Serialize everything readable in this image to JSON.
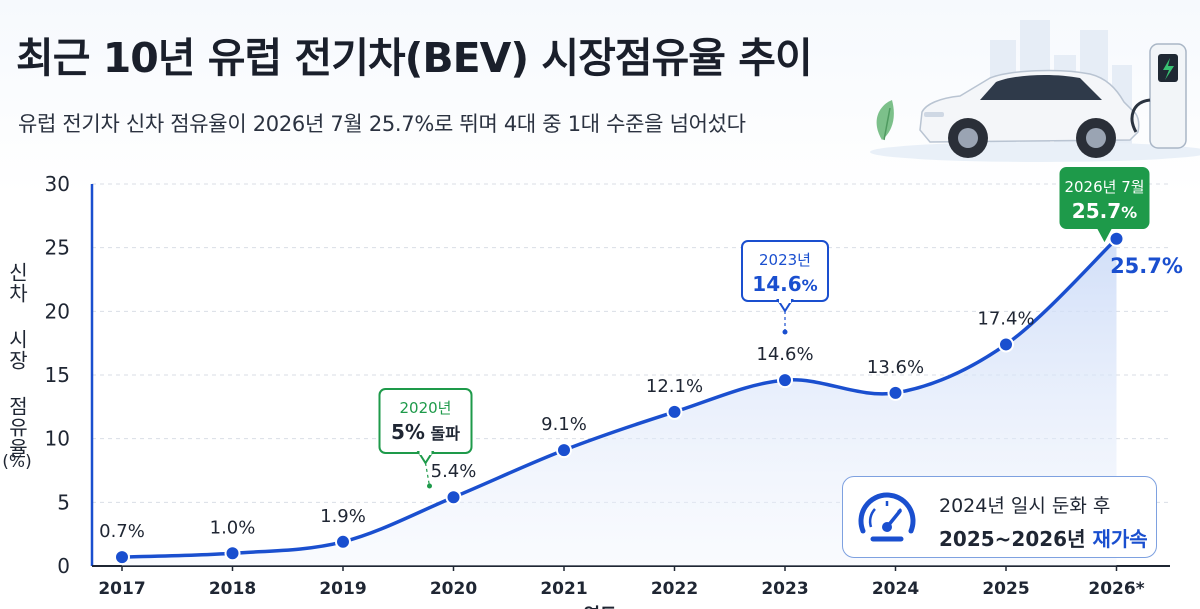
{
  "header": {
    "title": "최근 10년 유럽 전기차(BEV) 시장점유율 추이",
    "subtitle": "유럽 전기차 신차 점유율이 2026년 7월 25.7%로 뛰며 4대 중 1대 수준을 넘어섰다"
  },
  "hero": {
    "car_icon": "car-icon",
    "charger_icon": "ev-charger-icon"
  },
  "chart_data": {
    "type": "line",
    "title": "최근 10년 유럽 전기차(BEV) 시장점유율 추이",
    "ylabel": "신차 시장 점유율",
    "yunit": "(%)",
    "xlabel": "연도",
    "ylim": [
      0,
      30
    ],
    "yticks": [
      0,
      5,
      10,
      15,
      20,
      25,
      30
    ],
    "grid": true,
    "x": [
      "2017",
      "2018",
      "2019",
      "2020",
      "2021",
      "2022",
      "2023",
      "2024",
      "2025",
      "2026*"
    ],
    "series": [
      {
        "values": [
          0.7,
          1.0,
          1.9,
          5.4,
          9.1,
          12.1,
          14.6,
          13.6,
          17.4,
          25.7
        ]
      }
    ],
    "data_labels": [
      "0.7%",
      "1.0%",
      "1.9%",
      "5.4%",
      "9.1%",
      "12.1%",
      "14.6%",
      "13.6%",
      "17.4%",
      "25.7%"
    ],
    "colors": {
      "line": "#1a4fcf",
      "area": "#dbe6fb",
      "green": "#1e9a4a",
      "axis": "#1a4fcf"
    },
    "annotations": [
      {
        "index": 3,
        "line1": "2020년",
        "line2_bold": "5%",
        "line2_rest": " 돌파",
        "style": "green-outline"
      },
      {
        "index": 6,
        "line1": "2023년",
        "line2_bold": "14.6",
        "line2_rest": "%",
        "style": "blue-outline"
      },
      {
        "index": 9,
        "line1": "2026년 7월",
        "line2_bold": "25.7",
        "line2_rest": "%",
        "style": "green-filled"
      }
    ]
  },
  "note": {
    "icon": "speedometer-icon",
    "line1": "2024년 일시 둔화 후",
    "line2": "2025~2026년",
    "line2_highlight": "재가속"
  }
}
